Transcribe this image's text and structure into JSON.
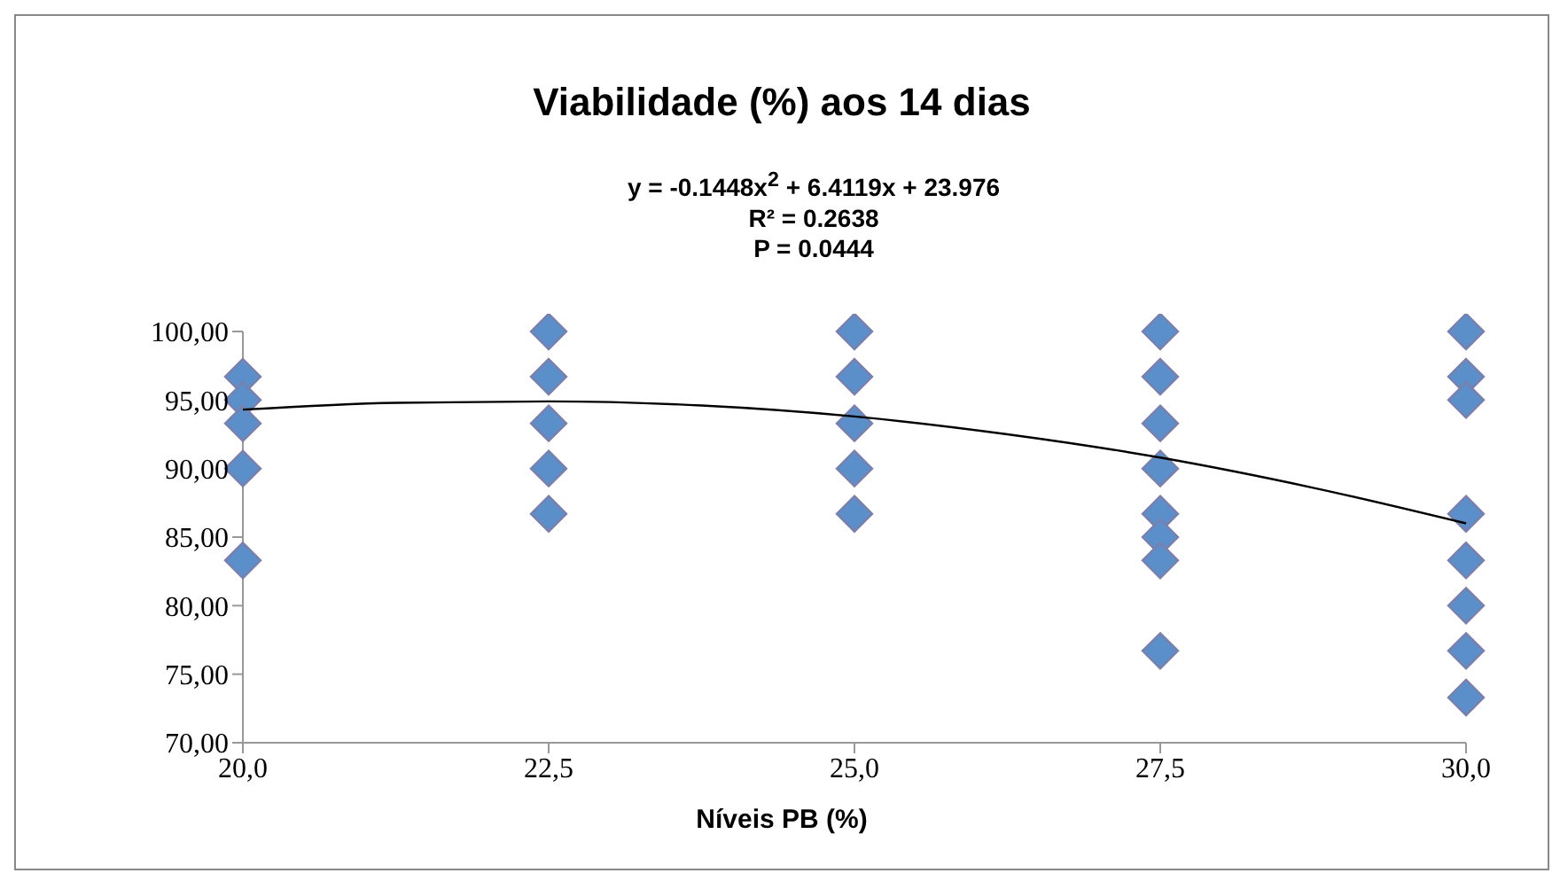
{
  "chart_data": {
    "type": "scatter",
    "title": "Viabilidade (%) aos 14 dias",
    "xlabel": "Níveis PB (%)",
    "annotations": [
      "y = -0.1448x$^{2}$ + 6.4119x + 23.976",
      "R² = 0.2638",
      "P = 0.0444"
    ],
    "series": [
      {
        "marker": "diamond",
        "color": "#5b8fc9",
        "x": [
          20,
          20,
          20,
          20,
          20,
          22.5,
          22.5,
          22.5,
          22.5,
          22.5,
          25,
          25,
          25,
          25,
          25,
          27.5,
          27.5,
          27.5,
          27.5,
          27.5,
          27.5,
          27.5,
          27.5,
          30,
          30,
          30,
          30,
          30,
          30,
          30,
          30
        ],
        "values": [
          96.7,
          95,
          93.3,
          90,
          83.3,
          100,
          96.7,
          93.3,
          90,
          86.7,
          100,
          96.7,
          93.3,
          90,
          86.7,
          100,
          96.7,
          93.3,
          90,
          86.7,
          85,
          83.3,
          76.7,
          100,
          96.7,
          95,
          86.7,
          83.3,
          80,
          76.7,
          73.3
        ]
      },
      {
        "type": "line",
        "marker": "none",
        "color": "#000000",
        "x": [
          20,
          21.25,
          22.5,
          23.75,
          25,
          26.25,
          27.5,
          28.75,
          30
        ],
        "values": [
          94.3,
          94.8,
          94.9,
          94.6,
          93.8,
          92.5,
          90.8,
          88.6,
          86.0
        ]
      }
    ],
    "xlim": [
      20,
      30
    ],
    "xticks": [
      {
        "value": 20,
        "label": "20,0"
      },
      {
        "value": 22.5,
        "label": "22,5"
      },
      {
        "value": 25,
        "label": "25,0"
      },
      {
        "value": 27.5,
        "label": "27,5"
      },
      {
        "value": 30,
        "label": "30,0"
      }
    ],
    "ylim": [
      70,
      100
    ],
    "yticks": [
      {
        "value": 70,
        "label": "70,00"
      },
      {
        "value": 75,
        "label": "75,00"
      },
      {
        "value": 80,
        "label": "80,00"
      },
      {
        "value": 85,
        "label": "85,00"
      },
      {
        "value": 90,
        "label": "90,00"
      },
      {
        "value": 95,
        "label": "95,00"
      },
      {
        "value": 100,
        "label": "100,00"
      }
    ],
    "grid": false
  }
}
